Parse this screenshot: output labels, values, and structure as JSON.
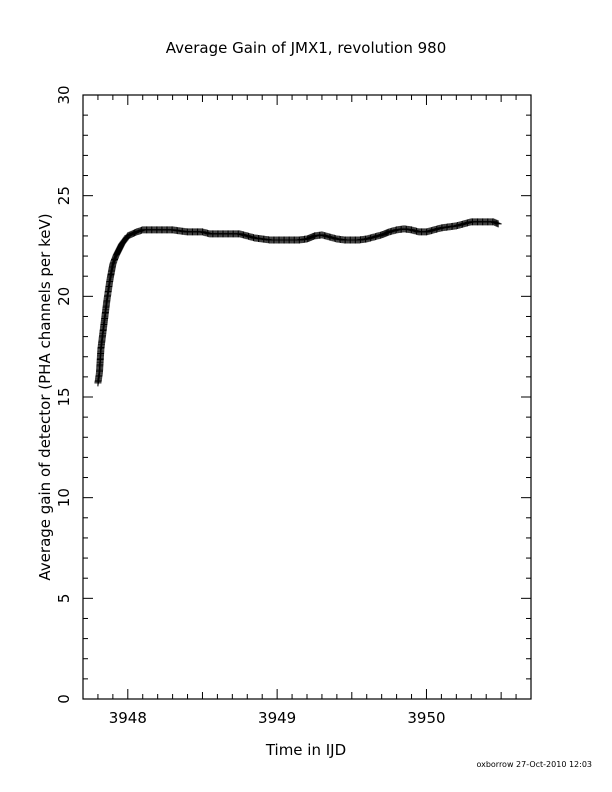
{
  "chart_data": {
    "type": "scatter",
    "title": "Average Gain of JMX1, revolution 980",
    "xlabel": "Time in IJD",
    "ylabel": "Average gain of detector (PHA channels per keV)",
    "xlim": [
      3947.7,
      3950.7
    ],
    "ylim": [
      0,
      30
    ],
    "xticks": [
      3948,
      3949,
      3950
    ],
    "yticks": [
      0,
      5,
      10,
      15,
      20,
      25,
      30
    ],
    "marker": "plus",
    "grid": false,
    "points": [
      [
        3947.8,
        15.7
      ],
      [
        3947.81,
        16.2
      ],
      [
        3947.815,
        16.8
      ],
      [
        3947.82,
        17.4
      ],
      [
        3947.83,
        18.0
      ],
      [
        3947.84,
        18.6
      ],
      [
        3947.85,
        19.2
      ],
      [
        3947.86,
        19.8
      ],
      [
        3947.87,
        20.3
      ],
      [
        3947.88,
        20.8
      ],
      [
        3947.89,
        21.2
      ],
      [
        3947.9,
        21.6
      ],
      [
        3947.92,
        22.0
      ],
      [
        3947.94,
        22.3
      ],
      [
        3947.96,
        22.6
      ],
      [
        3947.98,
        22.8
      ],
      [
        3948.0,
        23.0
      ],
      [
        3948.03,
        23.1
      ],
      [
        3948.06,
        23.2
      ],
      [
        3948.1,
        23.3
      ],
      [
        3948.15,
        23.3
      ],
      [
        3948.2,
        23.3
      ],
      [
        3948.25,
        23.3
      ],
      [
        3948.3,
        23.3
      ],
      [
        3948.35,
        23.25
      ],
      [
        3948.4,
        23.2
      ],
      [
        3948.45,
        23.2
      ],
      [
        3948.5,
        23.2
      ],
      [
        3948.55,
        23.1
      ],
      [
        3948.6,
        23.1
      ],
      [
        3948.65,
        23.1
      ],
      [
        3948.7,
        23.1
      ],
      [
        3948.75,
        23.1
      ],
      [
        3948.8,
        23.0
      ],
      [
        3948.85,
        22.9
      ],
      [
        3948.9,
        22.85
      ],
      [
        3948.95,
        22.8
      ],
      [
        3949.0,
        22.8
      ],
      [
        3949.05,
        22.8
      ],
      [
        3949.1,
        22.8
      ],
      [
        3949.15,
        22.8
      ],
      [
        3949.2,
        22.85
      ],
      [
        3949.25,
        23.0
      ],
      [
        3949.3,
        23.05
      ],
      [
        3949.35,
        22.95
      ],
      [
        3949.4,
        22.85
      ],
      [
        3949.45,
        22.8
      ],
      [
        3949.5,
        22.8
      ],
      [
        3949.55,
        22.8
      ],
      [
        3949.6,
        22.85
      ],
      [
        3949.65,
        22.95
      ],
      [
        3949.7,
        23.05
      ],
      [
        3949.75,
        23.2
      ],
      [
        3949.8,
        23.3
      ],
      [
        3949.85,
        23.35
      ],
      [
        3949.9,
        23.3
      ],
      [
        3949.95,
        23.2
      ],
      [
        3950.0,
        23.2
      ],
      [
        3950.05,
        23.3
      ],
      [
        3950.1,
        23.4
      ],
      [
        3950.15,
        23.45
      ],
      [
        3950.2,
        23.5
      ],
      [
        3950.25,
        23.6
      ],
      [
        3950.3,
        23.7
      ],
      [
        3950.35,
        23.7
      ],
      [
        3950.4,
        23.7
      ],
      [
        3950.45,
        23.7
      ],
      [
        3950.48,
        23.6
      ]
    ]
  },
  "footer": {
    "stamp": "oxborrow 27-Oct-2010 12:03"
  }
}
